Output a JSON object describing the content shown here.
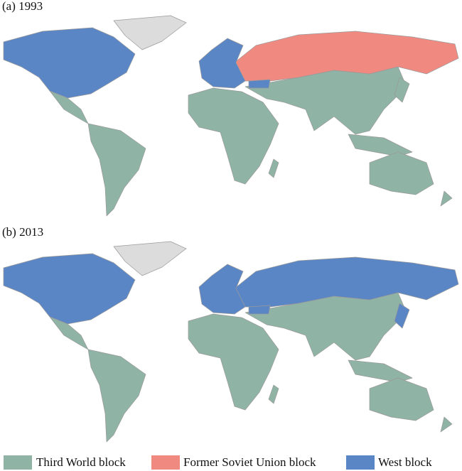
{
  "panels": [
    {
      "label": "(a) 1993"
    },
    {
      "label": "(b) 2013"
    }
  ],
  "legend": [
    {
      "name": "Third World block",
      "color": "#8fb3a5"
    },
    {
      "name": "Former Soviet Union block",
      "color": "#f08a80"
    },
    {
      "name": "West block",
      "color": "#5b86c5"
    }
  ]
}
